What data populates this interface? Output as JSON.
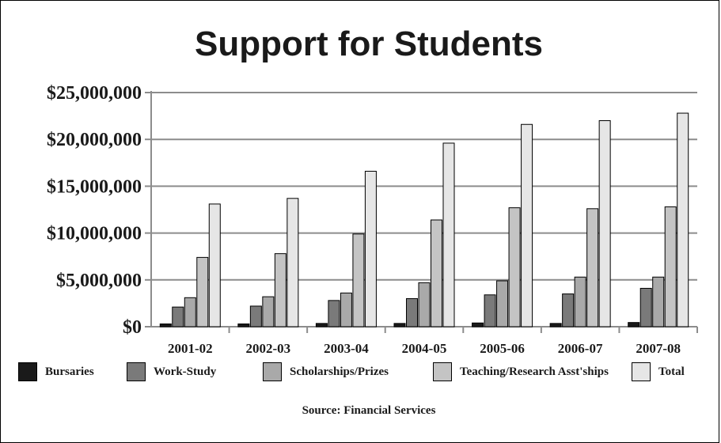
{
  "chart_data": {
    "type": "bar",
    "title": "Support for Students",
    "xlabel": "",
    "ylabel": "",
    "ylim": [
      0,
      25000000
    ],
    "yticks": [
      "$0",
      "$5,000,000",
      "$10,000,000",
      "$15,000,000",
      "$20,000,000",
      "$25,000,000"
    ],
    "ytick_values": [
      0,
      5000000,
      10000000,
      15000000,
      20000000,
      25000000
    ],
    "categories": [
      "2001-02",
      "2002-03",
      "2003-04",
      "2004-05",
      "2005-06",
      "2006-07",
      "2007-08"
    ],
    "series": [
      {
        "name": "Bursaries",
        "color": "#1a1a1a",
        "values": [
          300000,
          300000,
          350000,
          350000,
          400000,
          350000,
          450000
        ]
      },
      {
        "name": "Work-Study",
        "color": "#7a7a7a",
        "values": [
          2100000,
          2200000,
          2800000,
          3000000,
          3400000,
          3500000,
          4100000
        ]
      },
      {
        "name": "Scholarships/Prizes",
        "color": "#a9a9a9",
        "values": [
          3100000,
          3200000,
          3600000,
          4700000,
          4900000,
          5300000,
          5300000
        ]
      },
      {
        "name": "Teaching/Research Asst'ships",
        "color": "#c4c4c4",
        "values": [
          7400000,
          7800000,
          9900000,
          11400000,
          12700000,
          12600000,
          12800000
        ]
      },
      {
        "name": "Total",
        "color": "#e6e6e6",
        "values": [
          13100000,
          13700000,
          16600000,
          19600000,
          21600000,
          22000000,
          22800000
        ]
      }
    ],
    "grid": true,
    "legend_position": "bottom"
  },
  "source": "Source: Financial Services"
}
